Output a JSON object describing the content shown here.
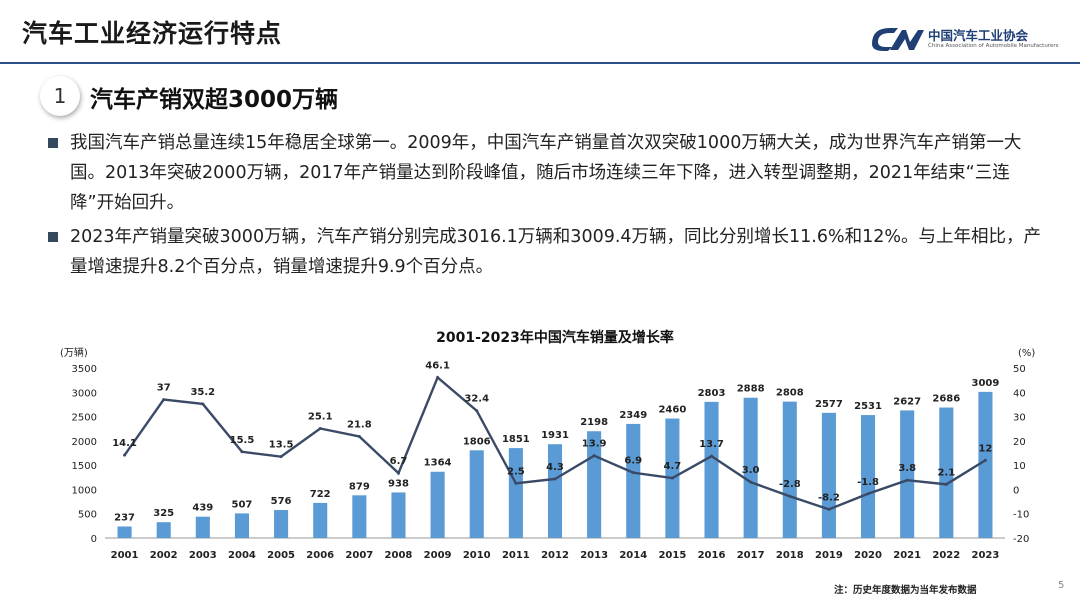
{
  "header": {
    "title": "汽车工业经济运行特点",
    "logo_name": "中国汽车工业协会",
    "logo_sub": "China Association of Automobile Manufacturers",
    "accent": "#2a4f8a"
  },
  "section": {
    "number": "1",
    "title": "汽车产销双超3000万辆"
  },
  "bullets": [
    "我国汽车产销总量连续15年稳居全球第一。2009年，中国汽车产销量首次双突破1000万辆大关，成为世界汽车产销第一大国。2013年突破2000万辆，2017年产销量达到阶段峰值，随后市场连续三年下降，进入转型调整期，2021年结束“三连降”开始回升。",
    "2023年产销量突破3000万辆，汽车产销分别完成3016.1万辆和3009.4万辆，同比分别增长11.6%和12%。与上年相比，产量增速提升8.2个百分点，销量增速提升9.9个百分点。"
  ],
  "chart_data": {
    "type": "bar",
    "title": "2001-2023年中国汽车销量及增长率",
    "categories": [
      "2001",
      "2002",
      "2003",
      "2004",
      "2005",
      "2006",
      "2007",
      "2008",
      "2009",
      "2010",
      "2011",
      "2012",
      "2013",
      "2014",
      "2015",
      "2016",
      "2017",
      "2018",
      "2019",
      "2020",
      "2021",
      "2022",
      "2023"
    ],
    "series": [
      {
        "name": "销量",
        "type": "bar",
        "axis": "left",
        "color": "#5b9bd5",
        "values": [
          237,
          325,
          439,
          507,
          576,
          722,
          879,
          938,
          1364,
          1806,
          1851,
          1931,
          2198,
          2349,
          2460,
          2803,
          2888,
          2808,
          2577,
          2531,
          2627,
          2686,
          3009
        ],
        "labels": [
          "237",
          "325",
          "439",
          "507",
          "576",
          "722",
          "879",
          "938",
          "1364",
          "1806",
          "1851",
          "1931",
          "2198",
          "2349",
          "2460",
          "2803",
          "2888",
          "2808",
          "2577",
          "2531",
          "2627",
          "2686",
          "3009"
        ]
      },
      {
        "name": "增长率",
        "type": "line",
        "axis": "right",
        "color": "#3a4a66",
        "values": [
          14.1,
          37,
          35.2,
          15.5,
          13.5,
          25.1,
          21.8,
          6.7,
          46.1,
          32.4,
          2.5,
          4.3,
          13.9,
          6.9,
          4.7,
          13.7,
          3.0,
          -2.8,
          -8.2,
          -1.8,
          3.8,
          2.1,
          12
        ],
        "labels": [
          "14.1",
          "37",
          "35.2",
          "15.5",
          "13.5",
          "25.1",
          "21.8",
          "6.7",
          "46.1",
          "32.4",
          "2.5",
          "4.3",
          "13.9",
          "6.9",
          "4.7",
          "13.7",
          "3.0",
          "-2.8",
          "-8.2",
          "-1.8",
          "3.8",
          "2.1",
          "12"
        ]
      }
    ],
    "ylabel": "(万辆)",
    "y2label": "(%)",
    "ylim": [
      0,
      3500
    ],
    "y2lim": [
      -20,
      50
    ],
    "yticks": [
      "0",
      "500",
      "1000",
      "1500",
      "2000",
      "2500",
      "3000",
      "3500"
    ],
    "y2ticks": [
      "-20",
      "-10",
      "0",
      "10",
      "20",
      "30",
      "40",
      "50"
    ],
    "grid": false
  },
  "footnote": "注：历史年度数据为当年发布数据",
  "page_number": "5"
}
